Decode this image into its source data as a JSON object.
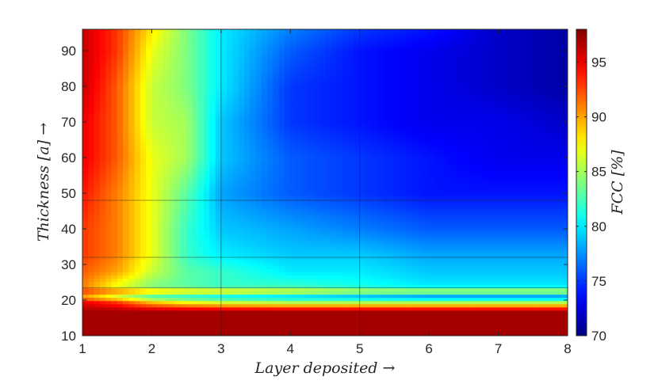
{
  "chart_data": {
    "type": "heatmap",
    "title": "",
    "xlabel": "Layer deposited →",
    "ylabel": "Thickness [a] →",
    "colorbar_label": "FCC [%]",
    "x_ticks": [
      1,
      2,
      3,
      4,
      5,
      6,
      7,
      8
    ],
    "y_ticks": [
      10,
      20,
      30,
      40,
      50,
      60,
      70,
      80,
      90
    ],
    "colorbar_ticks": [
      70,
      75,
      80,
      85,
      90,
      95
    ],
    "xlim": [
      1,
      8
    ],
    "ylim": [
      10,
      96
    ],
    "clim": [
      70,
      98
    ],
    "colormap": "jet",
    "grid": true,
    "grid_lines_x": [
      3,
      5
    ],
    "grid_lines_y": [
      23.5,
      32,
      48
    ],
    "x": [
      1,
      1.5,
      2,
      2.5,
      3,
      4,
      5,
      6,
      7,
      8
    ],
    "y": [
      10,
      14,
      17,
      19.5,
      21,
      22.5,
      24,
      28,
      33,
      40,
      50,
      60,
      70,
      80,
      90,
      96
    ],
    "z": [
      [
        97,
        97,
        97,
        97,
        97,
        97,
        97,
        97,
        97,
        97
      ],
      [
        97,
        97,
        97,
        97,
        97,
        97,
        97,
        97,
        97,
        97
      ],
      [
        97,
        97,
        97,
        97,
        97,
        97,
        97,
        97,
        97,
        97
      ],
      [
        95,
        93,
        89,
        87,
        86,
        85,
        85,
        85,
        85,
        85
      ],
      [
        90,
        86,
        82,
        81,
        80,
        79,
        78,
        77,
        77,
        77
      ],
      [
        93,
        91,
        89,
        88,
        88,
        87,
        86,
        86,
        86,
        86
      ],
      [
        91,
        87,
        84,
        83,
        82,
        82,
        81,
        80,
        80,
        80
      ],
      [
        92,
        90,
        86,
        83,
        82,
        80,
        80,
        79,
        79,
        79
      ],
      [
        93,
        91,
        87,
        82,
        80,
        79,
        79,
        78,
        78,
        78
      ],
      [
        93,
        91,
        87,
        82,
        79,
        78,
        77,
        76,
        76,
        76
      ],
      [
        94,
        91,
        87,
        83,
        78,
        76,
        75,
        74,
        74,
        74
      ],
      [
        95,
        92,
        87,
        85,
        79,
        76,
        75,
        74,
        73,
        73
      ],
      [
        95,
        92,
        86,
        85,
        79,
        75,
        74,
        73,
        73,
        72
      ],
      [
        96,
        92,
        86,
        84,
        80,
        75,
        74,
        73,
        72,
        71
      ],
      [
        96,
        93,
        87,
        84,
        80,
        76,
        74,
        73,
        72,
        71
      ],
      [
        96,
        93,
        88,
        84,
        80,
        77,
        75,
        74,
        72,
        71
      ]
    ]
  }
}
